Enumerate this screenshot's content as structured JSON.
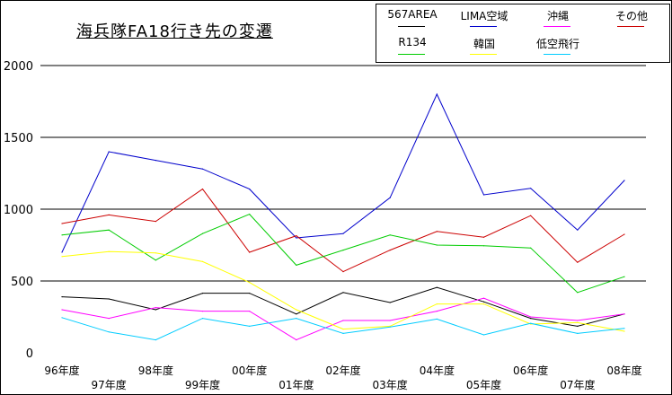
{
  "chart_data": {
    "type": "line",
    "title": "海兵隊FA18行き先の変遷",
    "xlabel": "",
    "ylabel": "",
    "ylim": [
      0,
      2000
    ],
    "yticks": [
      0,
      500,
      1000,
      1500,
      2000
    ],
    "grid": true,
    "legend_position": "top-right",
    "categories": [
      "96年度",
      "97年度",
      "98年度",
      "99年度",
      "00年度",
      "01年度",
      "02年度",
      "03年度",
      "04年度",
      "05年度",
      "06年度",
      "07年度",
      "08年度"
    ],
    "series": [
      {
        "name": "567AREA",
        "color": "#000000",
        "values": [
          390,
          375,
          300,
          415,
          415,
          270,
          420,
          350,
          455,
          355,
          240,
          185,
          270
        ]
      },
      {
        "name": "LIMA空域",
        "color": "#0000cc",
        "values": [
          700,
          1400,
          1340,
          1280,
          1140,
          800,
          830,
          1080,
          1800,
          1100,
          1145,
          855,
          1200
        ]
      },
      {
        "name": "沖縄",
        "color": "#ff00ff",
        "values": [
          300,
          240,
          315,
          290,
          290,
          90,
          225,
          225,
          290,
          380,
          250,
          225,
          270
        ]
      },
      {
        "name": "その他",
        "color": "#cc0000",
        "values": [
          900,
          960,
          915,
          1140,
          700,
          815,
          565,
          715,
          845,
          805,
          955,
          630,
          825
        ]
      },
      {
        "name": "R134",
        "color": "#00cc00",
        "values": [
          820,
          855,
          645,
          830,
          965,
          610,
          715,
          820,
          750,
          745,
          730,
          420,
          530
        ]
      },
      {
        "name": "韓国",
        "color": "#ffff00",
        "values": [
          670,
          705,
          695,
          635,
          490,
          300,
          165,
          185,
          340,
          340,
          200,
          210,
          150
        ]
      },
      {
        "name": "低空飛行",
        "color": "#00ccff",
        "values": [
          245,
          145,
          90,
          240,
          185,
          240,
          135,
          180,
          235,
          125,
          205,
          135,
          170
        ]
      }
    ]
  }
}
